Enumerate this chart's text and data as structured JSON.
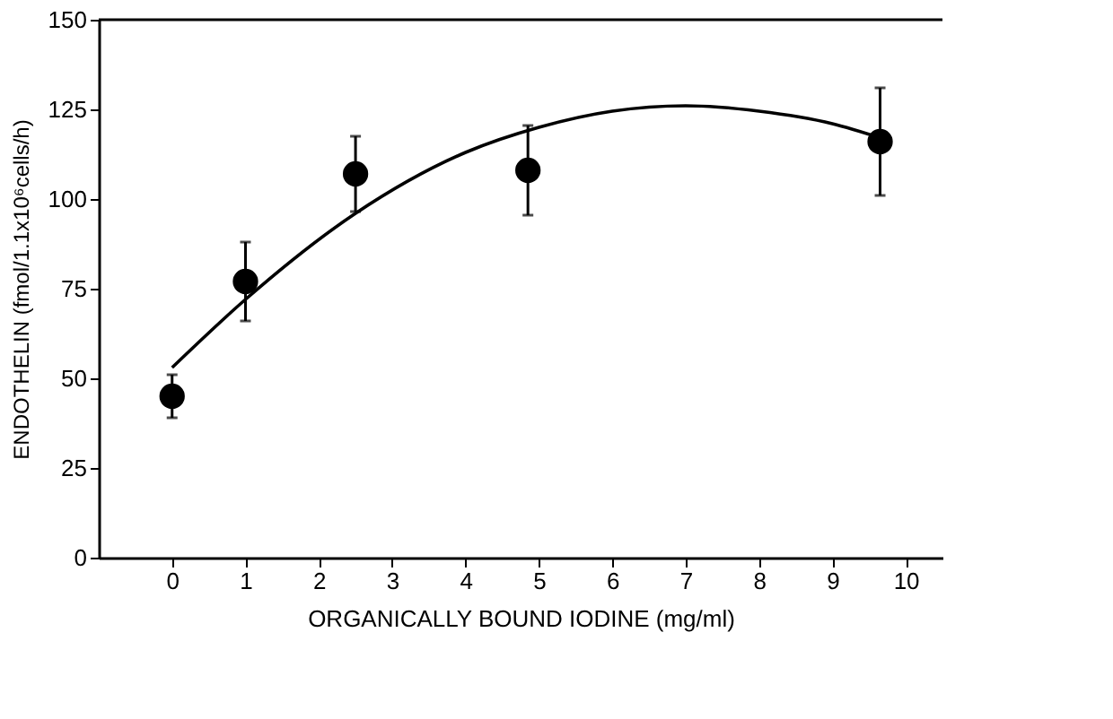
{
  "chart_data": {
    "type": "scatter",
    "xlabel": "ORGANICALLY BOUND IODINE (mg/ml)",
    "ylabel": "ENDOTHELIN (fmol/1.1x10⁶cells/h)",
    "xlim": [
      -1,
      10.5
    ],
    "xticks": [
      0,
      1,
      2,
      3,
      4,
      5,
      6,
      7,
      8,
      9,
      10
    ],
    "ylim": [
      0,
      150
    ],
    "yticks": [
      0,
      25,
      50,
      75,
      100,
      125,
      150
    ],
    "grid": false,
    "marker": "circle",
    "series": [
      {
        "color": "#000000",
        "x": [
          0,
          1,
          2.5,
          4.85,
          9.65
        ],
        "values": [
          45,
          77,
          107,
          108,
          116
        ],
        "errors": [
          6,
          11,
          10.5,
          12.5,
          15
        ]
      },
      {
        "type": "line",
        "color": "#000000",
        "line_style": "solid",
        "marker": "none",
        "x": [
          0,
          1,
          2.5,
          4,
          5,
          6,
          7,
          8,
          9,
          9.66
        ],
        "values": [
          53,
          72,
          96,
          113,
          120,
          124.5,
          126,
          124.5,
          121,
          117
        ]
      }
    ]
  }
}
